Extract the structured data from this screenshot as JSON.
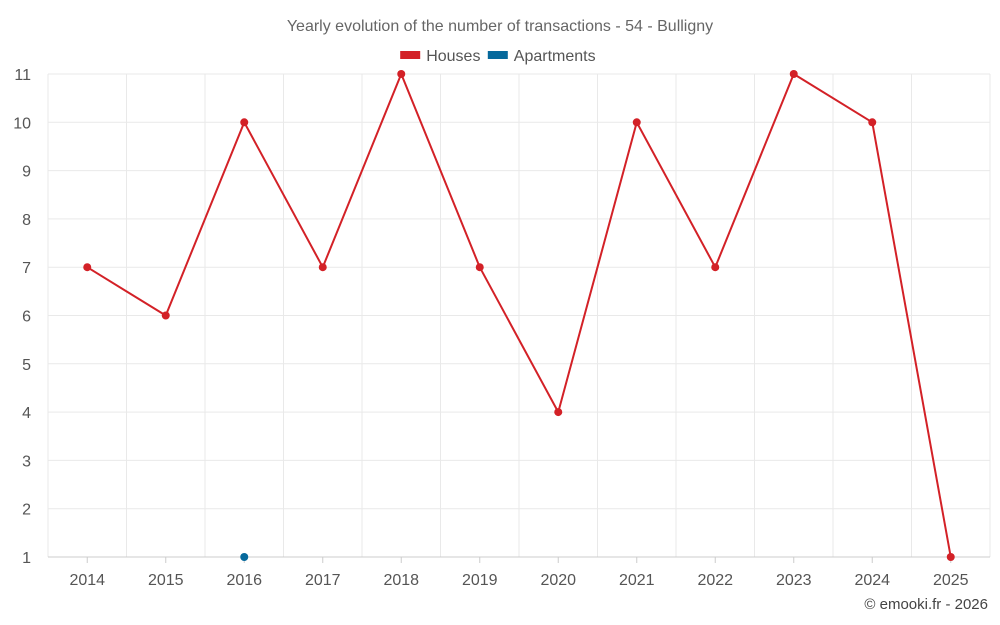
{
  "chart_data": {
    "type": "line",
    "title": "Yearly evolution of the number of transactions - 54 - Bulligny",
    "categories": [
      "2014",
      "2015",
      "2016",
      "2017",
      "2018",
      "2019",
      "2020",
      "2021",
      "2022",
      "2023",
      "2024",
      "2025"
    ],
    "series": [
      {
        "name": "Houses",
        "color": "#d32127",
        "values": [
          7,
          6,
          10,
          7,
          11,
          7,
          4,
          10,
          7,
          11,
          10,
          1
        ]
      },
      {
        "name": "Apartments",
        "color": "#06699c",
        "values": [
          null,
          null,
          1,
          null,
          null,
          null,
          null,
          null,
          null,
          null,
          null,
          null
        ]
      }
    ],
    "ylim": [
      1,
      11
    ],
    "yticks": [
      "1",
      "2",
      "3",
      "4",
      "5",
      "6",
      "7",
      "8",
      "9",
      "10",
      "11"
    ],
    "xlabel": "",
    "ylabel": "",
    "grid": true,
    "legend": "top-center"
  },
  "credit": "© emooki.fr - 2026"
}
